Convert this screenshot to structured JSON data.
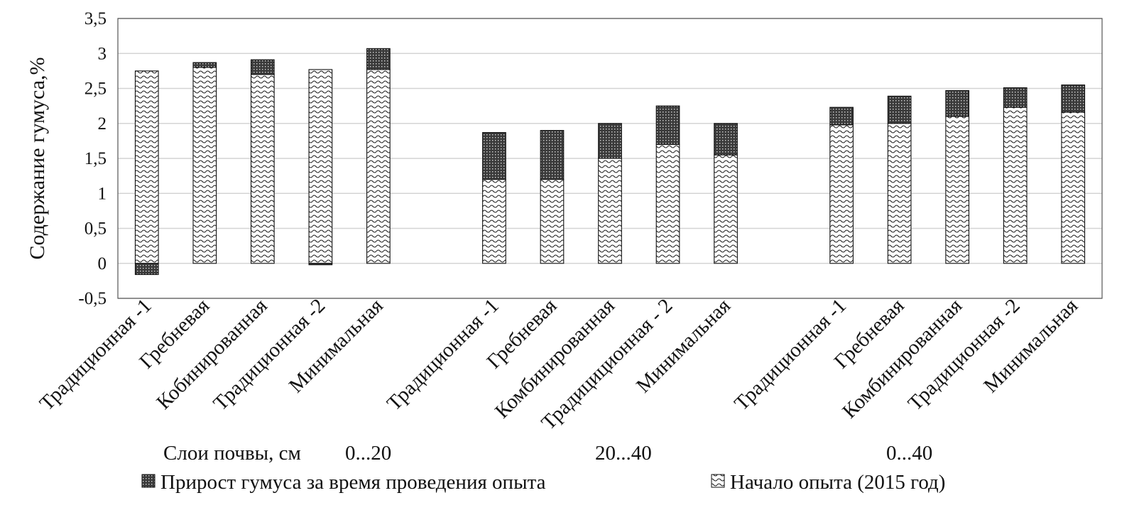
{
  "chart_data": {
    "type": "bar",
    "stacked": true,
    "ylabel": "Содержание гумуса,%",
    "xlabel": "Слои почвы, см",
    "ylim": [
      -0.5,
      3.5
    ],
    "yticks": [
      "-0,5",
      "0",
      "0,5",
      "1",
      "1,5",
      "2",
      "2,5",
      "3",
      "3,5"
    ],
    "grid": true,
    "legend_position": "bottom",
    "groups": [
      {
        "label": "0...20",
        "categories": [
          "Традиционная -1",
          "Гребневая",
          "Кобинированная",
          "Традиционная -2",
          "Минимальная"
        ]
      },
      {
        "label": "20...40",
        "categories": [
          "Традиционная -1",
          "Гребневая",
          "Комбинированная",
          "Традициционная - 2",
          "Минимальная"
        ]
      },
      {
        "label": "0...40",
        "categories": [
          "Традиционная -1",
          "Гребневая",
          "Комбинированная",
          "Традиционная -2",
          "Минимальная"
        ]
      }
    ],
    "series": [
      {
        "name": "Начало опыта (2015 год)",
        "pattern": "wave",
        "values": [
          2.75,
          2.8,
          2.7,
          2.77,
          2.77,
          1.2,
          1.2,
          1.5,
          1.7,
          1.55,
          1.98,
          2.0,
          2.1,
          2.23,
          2.16
        ]
      },
      {
        "name": "Прирост гумуса за время проведения опыта",
        "pattern": "dots",
        "values": [
          -0.16,
          0.07,
          0.21,
          -0.02,
          0.3,
          0.67,
          0.7,
          0.5,
          0.55,
          0.45,
          0.25,
          0.39,
          0.37,
          0.28,
          0.39
        ]
      }
    ],
    "legend": [
      {
        "name": "Прирост гумуса за время проведения опыта",
        "pattern": "dots"
      },
      {
        "name": "Начало опыта (2015 год)",
        "pattern": "wave"
      }
    ]
  }
}
